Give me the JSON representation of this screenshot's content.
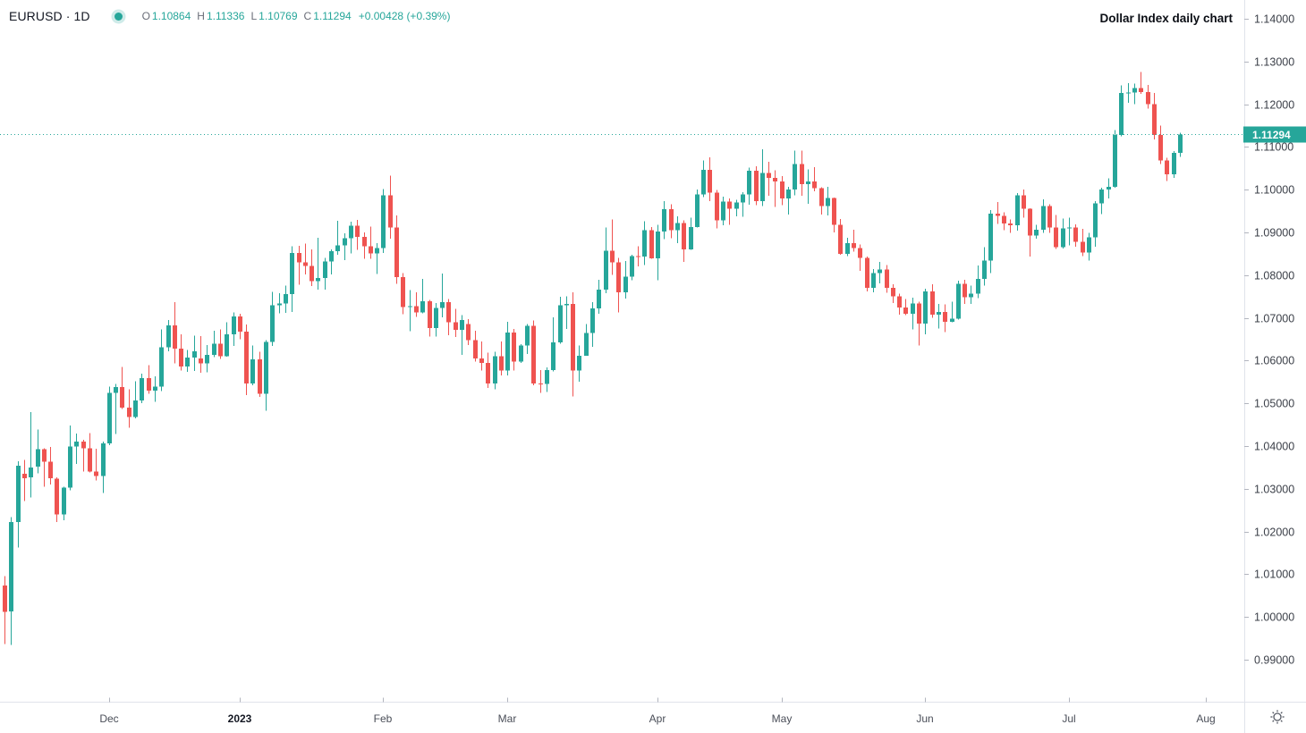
{
  "meta": {
    "up_color": "#26a69a",
    "down_color": "#ef5350",
    "accent_color": "#26a69a",
    "text_color": "#131722",
    "axis_text_color": "#3c4049",
    "muted_text_color": "#6a6d78",
    "border_color": "#e0e3eb",
    "tick_color": "#b2b5be",
    "badge_bg": "#26a69a",
    "badge_text_color": "#ffffff",
    "background": "#ffffff"
  },
  "legend": {
    "symbol_text": "EURUSD · 1D",
    "status_dot": "teal-dot",
    "ohlc": [
      {
        "k": "O",
        "v": "1.10864"
      },
      {
        "k": "H",
        "v": "1.11336"
      },
      {
        "k": "L",
        "v": "1.10769"
      },
      {
        "k": "C",
        "v": "1.11294"
      }
    ],
    "change": "+0.00428 (+0.39%)"
  },
  "title": "Dollar Index daily chart",
  "price_axis": {
    "labels": [
      "1.14000",
      "1.13000",
      "1.12000",
      "1.11000",
      "1.10000",
      "1.09000",
      "1.08000",
      "1.07000",
      "1.06000",
      "1.05000",
      "1.04000",
      "1.03000",
      "1.02000",
      "1.01000",
      "1.00000",
      "0.99000"
    ],
    "current": {
      "value": "1.11294",
      "price": 1.11294
    }
  },
  "time_axis": {
    "months": [
      {
        "label": "Dec",
        "index": 16
      },
      {
        "label": "2023",
        "index": 36,
        "bold": true
      },
      {
        "label": "Feb",
        "index": 58
      },
      {
        "label": "Mar",
        "index": 77
      },
      {
        "label": "Apr",
        "index": 100
      },
      {
        "label": "May",
        "index": 119
      },
      {
        "label": "Jun",
        "index": 141
      },
      {
        "label": "Jul",
        "index": 163
      },
      {
        "label": "Aug",
        "index": 184
      }
    ]
  },
  "icons": {
    "settings": "gear-sun-icon",
    "status": "filled-circle-with-halo"
  },
  "chart_data": {
    "type": "candlestick",
    "symbol": "EURUSD",
    "interval": "1D",
    "title": "Dollar Index daily chart",
    "xlabel": "",
    "ylabel": "",
    "ylim": [
      0.98,
      1.145
    ],
    "grid": false,
    "legend_position": "none",
    "x_categories_visible": [
      "Dec",
      "2023",
      "Feb",
      "Mar",
      "Apr",
      "May",
      "Jun",
      "Jul",
      "Aug"
    ],
    "current_price": 1.11294,
    "candles": [
      [
        1.0074,
        1.0096,
        0.9937,
        1.0012
      ],
      [
        1.0013,
        1.0234,
        0.9935,
        1.0222
      ],
      [
        1.0222,
        1.0364,
        1.0163,
        1.0354
      ],
      [
        1.0335,
        1.0368,
        1.0271,
        1.0325
      ],
      [
        1.0327,
        1.048,
        1.028,
        1.035
      ],
      [
        1.0352,
        1.0439,
        1.0336,
        1.0393
      ],
      [
        1.0393,
        1.0395,
        1.0305,
        1.0363
      ],
      [
        1.0363,
        1.0398,
        1.031,
        1.0325
      ],
      [
        1.0324,
        1.0327,
        1.0222,
        1.024
      ],
      [
        1.024,
        1.0305,
        1.0226,
        1.0303
      ],
      [
        1.0303,
        1.0448,
        1.0296,
        1.0399
      ],
      [
        1.0399,
        1.0429,
        1.0358,
        1.041
      ],
      [
        1.041,
        1.0415,
        1.034,
        1.0395
      ],
      [
        1.0395,
        1.043,
        1.0338,
        1.034
      ],
      [
        1.034,
        1.0394,
        1.0319,
        1.033
      ],
      [
        1.033,
        1.041,
        1.029,
        1.0406
      ],
      [
        1.0406,
        1.0539,
        1.0402,
        1.0525
      ],
      [
        1.0525,
        1.0545,
        1.0428,
        1.0538
      ],
      [
        1.0538,
        1.0585,
        1.0487,
        1.049
      ],
      [
        1.049,
        1.0533,
        1.0443,
        1.0468
      ],
      [
        1.0468,
        1.0552,
        1.0465,
        1.0507
      ],
      [
        1.0507,
        1.0569,
        1.05,
        1.0559
      ],
      [
        1.0559,
        1.0589,
        1.0522,
        1.053
      ],
      [
        1.053,
        1.0563,
        1.0504,
        1.0539
      ],
      [
        1.0539,
        1.0673,
        1.0529,
        1.0631
      ],
      [
        1.0631,
        1.0695,
        1.0622,
        1.0682
      ],
      [
        1.0682,
        1.0737,
        1.0594,
        1.0628
      ],
      [
        1.0628,
        1.0661,
        1.0577,
        1.0586
      ],
      [
        1.0586,
        1.0625,
        1.0574,
        1.0607
      ],
      [
        1.0607,
        1.0658,
        1.0576,
        1.0622
      ],
      [
        1.0605,
        1.0657,
        1.0572,
        1.0594
      ],
      [
        1.0594,
        1.0636,
        1.0573,
        1.0613
      ],
      [
        1.0613,
        1.067,
        1.0608,
        1.064
      ],
      [
        1.064,
        1.0673,
        1.0604,
        1.061
      ],
      [
        1.061,
        1.069,
        1.0609,
        1.0661
      ],
      [
        1.0661,
        1.0713,
        1.0634,
        1.0703
      ],
      [
        1.0703,
        1.071,
        1.065,
        1.0668
      ],
      [
        1.0668,
        1.0684,
        1.0519,
        1.0546
      ],
      [
        1.0546,
        1.0635,
        1.0542,
        1.0603
      ],
      [
        1.0603,
        1.0621,
        1.0515,
        1.0522
      ],
      [
        1.0522,
        1.0648,
        1.0483,
        1.0644
      ],
      [
        1.0644,
        1.0761,
        1.0634,
        1.073
      ],
      [
        1.073,
        1.0758,
        1.0711,
        1.0734
      ],
      [
        1.0734,
        1.0776,
        1.0712,
        1.0756
      ],
      [
        1.0756,
        1.0868,
        1.0714,
        1.0852
      ],
      [
        1.0852,
        1.0869,
        1.0778,
        1.083
      ],
      [
        1.083,
        1.0874,
        1.0802,
        1.0822
      ],
      [
        1.0822,
        1.086,
        1.0775,
        1.0786
      ],
      [
        1.0786,
        1.0887,
        1.0766,
        1.0793
      ],
      [
        1.0793,
        1.084,
        1.0766,
        1.0832
      ],
      [
        1.0832,
        1.086,
        1.0802,
        1.0856
      ],
      [
        1.0856,
        1.0927,
        1.0848,
        1.087
      ],
      [
        1.087,
        1.0898,
        1.0835,
        1.0886
      ],
      [
        1.0886,
        1.0925,
        1.0851,
        1.0916
      ],
      [
        1.0916,
        1.0929,
        1.0859,
        1.089
      ],
      [
        1.089,
        1.09,
        1.0838,
        1.0868
      ],
      [
        1.0868,
        1.0914,
        1.0838,
        1.0851
      ],
      [
        1.0851,
        1.0875,
        1.0803,
        1.0863
      ],
      [
        1.0863,
        1.1001,
        1.0852,
        1.0987
      ],
      [
        1.0987,
        1.1033,
        1.0885,
        1.0911
      ],
      [
        1.0911,
        1.094,
        1.078,
        1.0795
      ],
      [
        1.0795,
        1.0805,
        1.0709,
        1.0725
      ],
      [
        1.0725,
        1.0765,
        1.0669,
        1.0727
      ],
      [
        1.0727,
        1.076,
        1.0702,
        1.0713
      ],
      [
        1.0713,
        1.0791,
        1.0711,
        1.0739
      ],
      [
        1.0739,
        1.0742,
        1.0656,
        1.0676
      ],
      [
        1.0676,
        1.0735,
        1.0656,
        1.0723
      ],
      [
        1.0723,
        1.0804,
        1.0701,
        1.0737
      ],
      [
        1.0737,
        1.0744,
        1.0659,
        1.069
      ],
      [
        1.069,
        1.0721,
        1.0655,
        1.0672
      ],
      [
        1.0672,
        1.0706,
        1.0613,
        1.0695
      ],
      [
        1.0686,
        1.0697,
        1.0636,
        1.0648
      ],
      [
        1.0648,
        1.067,
        1.0598,
        1.0605
      ],
      [
        1.0605,
        1.0645,
        1.0577,
        1.0595
      ],
      [
        1.0595,
        1.0619,
        1.0536,
        1.0546
      ],
      [
        1.0546,
        1.0621,
        1.0533,
        1.061
      ],
      [
        1.061,
        1.0645,
        1.0565,
        1.0577
      ],
      [
        1.0577,
        1.0691,
        1.0565,
        1.0666
      ],
      [
        1.0666,
        1.0674,
        1.0577,
        1.0598
      ],
      [
        1.0598,
        1.0638,
        1.0595,
        1.0635
      ],
      [
        1.0635,
        1.0686,
        1.0615,
        1.0681
      ],
      [
        1.0681,
        1.0694,
        1.0542,
        1.0546
      ],
      [
        1.0546,
        1.0578,
        1.0524,
        1.0545
      ],
      [
        1.0545,
        1.0584,
        1.0527,
        1.0578
      ],
      [
        1.0578,
        1.0701,
        1.0575,
        1.0643
      ],
      [
        1.0643,
        1.0749,
        1.064,
        1.0729
      ],
      [
        1.0729,
        1.075,
        1.0674,
        1.0733
      ],
      [
        1.0733,
        1.076,
        1.0516,
        1.0577
      ],
      [
        1.0577,
        1.0635,
        1.0551,
        1.0611
      ],
      [
        1.0611,
        1.0686,
        1.0611,
        1.0665
      ],
      [
        1.0665,
        1.0737,
        1.0632,
        1.0722
      ],
      [
        1.0722,
        1.0789,
        1.071,
        1.0766
      ],
      [
        1.0766,
        1.0912,
        1.0758,
        1.0857
      ],
      [
        1.0857,
        1.093,
        1.0801,
        1.083
      ],
      [
        1.083,
        1.084,
        1.0713,
        1.076
      ],
      [
        1.076,
        1.0833,
        1.0745,
        1.0796
      ],
      [
        1.0796,
        1.0848,
        1.0788,
        1.0845
      ],
      [
        1.0845,
        1.0868,
        1.082,
        1.0843
      ],
      [
        1.0843,
        1.0926,
        1.0824,
        1.0905
      ],
      [
        1.0905,
        1.0913,
        1.0838,
        1.0839
      ],
      [
        1.0839,
        1.0918,
        1.0788,
        1.0902
      ],
      [
        1.0902,
        1.0973,
        1.0884,
        1.0954
      ],
      [
        1.0954,
        1.0966,
        1.0886,
        1.0905
      ],
      [
        1.0905,
        1.0938,
        1.0875,
        1.0922
      ],
      [
        1.0922,
        1.0928,
        1.0831,
        1.086
      ],
      [
        1.086,
        1.0935,
        1.0859,
        1.0913
      ],
      [
        1.0913,
        1.1,
        1.0911,
        1.0989
      ],
      [
        1.0989,
        1.1068,
        1.0983,
        1.1046
      ],
      [
        1.1046,
        1.1076,
        1.0973,
        1.0993
      ],
      [
        1.0993,
        1.0999,
        1.0909,
        1.0928
      ],
      [
        1.0928,
        1.0984,
        1.0917,
        1.0972
      ],
      [
        1.0972,
        1.0979,
        1.0918,
        1.0955
      ],
      [
        1.0955,
        1.0976,
        1.0938,
        1.097
      ],
      [
        1.097,
        1.0994,
        1.0937,
        1.0989
      ],
      [
        1.0989,
        1.1052,
        1.0965,
        1.1044
      ],
      [
        1.1044,
        1.1055,
        1.0964,
        1.0973
      ],
      [
        1.0973,
        1.1095,
        1.0962,
        1.1039
      ],
      [
        1.1039,
        1.1065,
        1.0986,
        1.1028
      ],
      [
        1.1028,
        1.1045,
        1.096,
        1.1019
      ],
      [
        1.1019,
        1.1032,
        1.0964,
        1.098
      ],
      [
        1.098,
        1.1007,
        1.0942,
        1.1
      ],
      [
        1.1,
        1.1091,
        1.0987,
        1.106
      ],
      [
        1.106,
        1.1091,
        1.0986,
        1.1013
      ],
      [
        1.1013,
        1.1048,
        1.0967,
        1.1019
      ],
      [
        1.1019,
        1.1053,
        1.0996,
        1.1004
      ],
      [
        1.1004,
        1.1006,
        1.0942,
        1.0962
      ],
      [
        1.0962,
        1.1007,
        1.094,
        1.0981
      ],
      [
        1.0981,
        1.0982,
        1.09,
        1.0918
      ],
      [
        1.0918,
        1.0931,
        1.0848,
        1.085
      ],
      [
        1.085,
        1.0887,
        1.0845,
        1.0875
      ],
      [
        1.0875,
        1.0906,
        1.0855,
        1.0863
      ],
      [
        1.0863,
        1.0872,
        1.081,
        1.084
      ],
      [
        1.084,
        1.0843,
        1.0762,
        1.077
      ],
      [
        1.077,
        1.0814,
        1.076,
        1.0805
      ],
      [
        1.0805,
        1.0831,
        1.0781,
        1.0813
      ],
      [
        1.0813,
        1.0824,
        1.0759,
        1.077
      ],
      [
        1.077,
        1.0779,
        1.0735,
        1.075
      ],
      [
        1.075,
        1.0757,
        1.0708,
        1.0724
      ],
      [
        1.0724,
        1.0744,
        1.0706,
        1.071
      ],
      [
        1.071,
        1.0747,
        1.0673,
        1.0734
      ],
      [
        1.0734,
        1.0738,
        1.0635,
        1.0687
      ],
      [
        1.0687,
        1.0768,
        1.0661,
        1.0762
      ],
      [
        1.0762,
        1.0779,
        1.07,
        1.0708
      ],
      [
        1.0708,
        1.0733,
        1.0675,
        1.0714
      ],
      [
        1.0714,
        1.0732,
        1.0667,
        1.0691
      ],
      [
        1.0691,
        1.0738,
        1.069,
        1.0698
      ],
      [
        1.0698,
        1.0787,
        1.0696,
        1.078
      ],
      [
        1.078,
        1.0789,
        1.0733,
        1.0748
      ],
      [
        1.0748,
        1.0776,
        1.0733,
        1.0757
      ],
      [
        1.0757,
        1.0823,
        1.0746,
        1.0791
      ],
      [
        1.0791,
        1.0865,
        1.0776,
        1.0834
      ],
      [
        1.0834,
        1.0952,
        1.0805,
        1.0944
      ],
      [
        1.0944,
        1.0971,
        1.092,
        1.0939
      ],
      [
        1.0939,
        1.0947,
        1.0905,
        1.0921
      ],
      [
        1.0921,
        1.093,
        1.0899,
        1.0917
      ],
      [
        1.0917,
        1.0992,
        1.0904,
        1.0987
      ],
      [
        1.0987,
        1.1,
        1.0935,
        1.0955
      ],
      [
        1.0955,
        1.0956,
        1.0844,
        1.0893
      ],
      [
        1.0893,
        1.0918,
        1.0885,
        1.0906
      ],
      [
        1.0906,
        1.0977,
        1.0899,
        1.0962
      ],
      [
        1.0962,
        1.0966,
        1.0899,
        1.0912
      ],
      [
        1.0912,
        1.0941,
        1.0861,
        1.0866
      ],
      [
        1.0866,
        1.0932,
        1.0862,
        1.0909
      ],
      [
        1.0909,
        1.0935,
        1.087,
        1.0911
      ],
      [
        1.0911,
        1.0919,
        1.0867,
        1.0878
      ],
      [
        1.0878,
        1.0908,
        1.0845,
        1.0853
      ],
      [
        1.0853,
        1.0899,
        1.0834,
        1.0888
      ],
      [
        1.0888,
        1.0973,
        1.0867,
        1.0968
      ],
      [
        1.0968,
        1.1005,
        1.0943,
        1.1
      ],
      [
        1.1,
        1.1027,
        1.098,
        1.1007
      ],
      [
        1.1007,
        1.114,
        1.1005,
        1.1128
      ],
      [
        1.1128,
        1.1244,
        1.1125,
        1.1226
      ],
      [
        1.1226,
        1.1249,
        1.1203,
        1.1227
      ],
      [
        1.1227,
        1.1248,
        1.12,
        1.1238
      ],
      [
        1.1238,
        1.1276,
        1.1224,
        1.1228
      ],
      [
        1.1228,
        1.1245,
        1.119,
        1.12
      ],
      [
        1.12,
        1.1226,
        1.1118,
        1.1128
      ],
      [
        1.1128,
        1.115,
        1.106,
        1.1068
      ],
      [
        1.1068,
        1.1075,
        1.102,
        1.1036
      ],
      [
        1.1036,
        1.109,
        1.1028,
        1.1086
      ],
      [
        1.10864,
        1.11336,
        1.10769,
        1.11294
      ]
    ]
  }
}
